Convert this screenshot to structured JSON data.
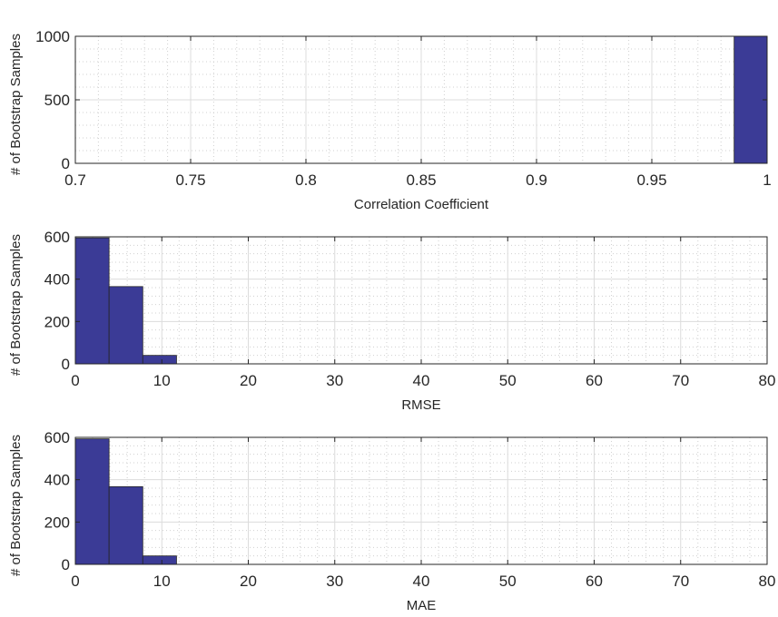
{
  "colors": {
    "bar": "#3b3b96",
    "axes": "#262626",
    "grid": "#dcdcdc"
  },
  "chart_data": [
    {
      "type": "bar",
      "xlabel": "Correlation Coefficient",
      "ylabel": "# of Bootstrap Samples",
      "xlim": [
        0.7,
        1
      ],
      "ylim": [
        0,
        1000
      ],
      "xticks": [
        "0.7",
        "0.75",
        "0.8",
        "0.85",
        "0.9",
        "0.95",
        "1"
      ],
      "yticks": [
        "0",
        "500",
        "1000"
      ],
      "grid": true,
      "bins": [
        {
          "x0": 0.9857,
          "x1": 1.0,
          "value": 1000
        }
      ]
    },
    {
      "type": "bar",
      "xlabel": "RMSE",
      "ylabel": "# of Bootstrap Samples",
      "xlim": [
        0,
        80
      ],
      "ylim": [
        0,
        600
      ],
      "xticks": [
        "0",
        "10",
        "20",
        "30",
        "40",
        "50",
        "60",
        "70",
        "80"
      ],
      "yticks": [
        "0",
        "200",
        "400",
        "600"
      ],
      "grid": true,
      "bins": [
        {
          "x0": 0,
          "x1": 3.9,
          "value": 595
        },
        {
          "x0": 3.9,
          "x1": 7.8,
          "value": 365
        },
        {
          "x0": 7.8,
          "x1": 11.7,
          "value": 40
        }
      ]
    },
    {
      "type": "bar",
      "xlabel": "MAE",
      "ylabel": "# of Bootstrap Samples",
      "xlim": [
        0,
        80
      ],
      "ylim": [
        0,
        600
      ],
      "xticks": [
        "0",
        "10",
        "20",
        "30",
        "40",
        "50",
        "60",
        "70",
        "80"
      ],
      "yticks": [
        "0",
        "200",
        "400",
        "600"
      ],
      "grid": true,
      "bins": [
        {
          "x0": 0,
          "x1": 3.9,
          "value": 593
        },
        {
          "x0": 3.9,
          "x1": 7.8,
          "value": 367
        },
        {
          "x0": 7.8,
          "x1": 11.7,
          "value": 40
        }
      ]
    }
  ]
}
